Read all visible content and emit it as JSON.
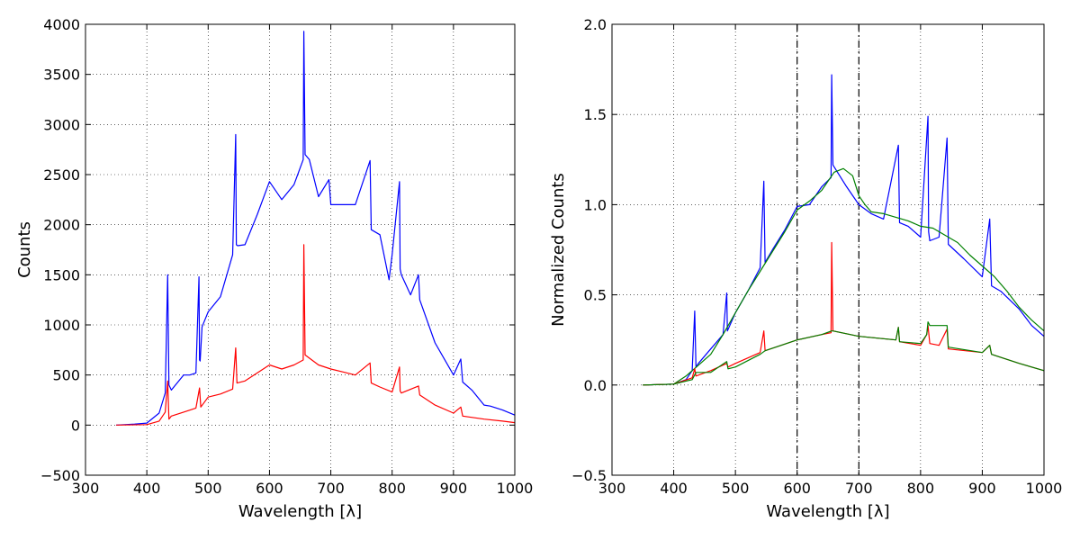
{
  "chart_data": [
    {
      "type": "line",
      "xlabel": "Wavelength [λ]",
      "ylabel": "Counts",
      "xlim": [
        300,
        1000
      ],
      "ylim": [
        -500,
        4000
      ],
      "xticks": [
        300,
        400,
        500,
        600,
        700,
        800,
        900,
        1000
      ],
      "yticks": [
        -500,
        0,
        500,
        1000,
        1500,
        2000,
        2500,
        3000,
        3500,
        4000
      ],
      "xtick_labels": [
        "300",
        "400",
        "500",
        "600",
        "700",
        "800",
        "900",
        "1000"
      ],
      "ytick_labels": [
        "−500",
        "0",
        "500",
        "1000",
        "1500",
        "2000",
        "2500",
        "3000",
        "3500",
        "4000"
      ],
      "grid": true,
      "series": [
        {
          "color": "#0000ff",
          "x": [
            350,
            380,
            400,
            420,
            430,
            434,
            436,
            440,
            460,
            470,
            480,
            485,
            486,
            487,
            490,
            500,
            520,
            540,
            545,
            546,
            548,
            560,
            580,
            600,
            620,
            640,
            655,
            656,
            658,
            665,
            680,
            697,
            700,
            720,
            740,
            764,
            766,
            780,
            795,
            800,
            812,
            813,
            815,
            830,
            843,
            845,
            870,
            900,
            912,
            915,
            930,
            950,
            960,
            980,
            1000
          ],
          "y": [
            0,
            10,
            20,
            120,
            320,
            1500,
            400,
            350,
            500,
            500,
            520,
            1480,
            650,
            640,
            980,
            1130,
            1280,
            1700,
            2900,
            1800,
            1790,
            1800,
            2100,
            2430,
            2250,
            2400,
            2650,
            3930,
            2700,
            2650,
            2280,
            2450,
            2200,
            2200,
            2200,
            2640,
            1950,
            1900,
            1450,
            1700,
            2430,
            1560,
            1500,
            1300,
            1500,
            1250,
            820,
            500,
            660,
            430,
            350,
            200,
            190,
            150,
            100
          ]
        },
        {
          "color": "#ff0000",
          "x": [
            350,
            400,
            420,
            430,
            434,
            436,
            440,
            460,
            480,
            486,
            488,
            500,
            520,
            540,
            545,
            547,
            560,
            580,
            600,
            620,
            640,
            655,
            656,
            658,
            680,
            700,
            720,
            740,
            764,
            766,
            780,
            800,
            812,
            813,
            815,
            843,
            845,
            870,
            900,
            912,
            915,
            950,
            980,
            1000
          ],
          "y": [
            0,
            5,
            40,
            130,
            440,
            60,
            90,
            130,
            170,
            370,
            180,
            280,
            310,
            360,
            770,
            420,
            440,
            520,
            600,
            560,
            600,
            650,
            1800,
            700,
            600,
            560,
            530,
            500,
            620,
            420,
            380,
            330,
            580,
            340,
            320,
            390,
            300,
            200,
            120,
            180,
            90,
            60,
            40,
            25
          ]
        }
      ]
    },
    {
      "type": "line",
      "xlabel": "Wavelength [λ]",
      "ylabel": "Normalized Counts",
      "xlim": [
        300,
        1000
      ],
      "ylim": [
        -0.5,
        2.0
      ],
      "xticks": [
        300,
        400,
        500,
        600,
        700,
        800,
        900,
        1000
      ],
      "yticks": [
        -0.5,
        0.0,
        0.5,
        1.0,
        1.5,
        2.0
      ],
      "xtick_labels": [
        "300",
        "400",
        "500",
        "600",
        "700",
        "800",
        "900",
        "1000"
      ],
      "ytick_labels": [
        "−0.5",
        "0.0",
        "0.5",
        "1.0",
        "1.5",
        "2.0"
      ],
      "grid": true,
      "vlines": [
        600,
        700
      ],
      "series": [
        {
          "color": "#0000ff",
          "x": [
            350,
            400,
            420,
            430,
            434,
            436,
            440,
            460,
            480,
            486,
            487,
            500,
            520,
            540,
            546,
            548,
            560,
            580,
            600,
            620,
            640,
            655,
            656,
            658,
            680,
            700,
            720,
            740,
            764,
            766,
            780,
            800,
            812,
            813,
            815,
            830,
            843,
            845,
            870,
            900,
            912,
            915,
            930,
            960,
            980,
            1000
          ],
          "y": [
            0.0,
            0.005,
            0.03,
            0.08,
            0.41,
            0.1,
            0.12,
            0.2,
            0.28,
            0.51,
            0.3,
            0.4,
            0.52,
            0.65,
            1.13,
            0.68,
            0.75,
            0.86,
            0.99,
            1.0,
            1.1,
            1.15,
            1.72,
            1.22,
            1.1,
            1.0,
            0.95,
            0.92,
            1.33,
            0.9,
            0.88,
            0.82,
            1.49,
            0.85,
            0.8,
            0.82,
            1.37,
            0.78,
            0.7,
            0.6,
            0.92,
            0.55,
            0.52,
            0.42,
            0.33,
            0.27
          ]
        },
        {
          "color": "#008000",
          "x": [
            350,
            400,
            420,
            440,
            460,
            480,
            500,
            520,
            540,
            560,
            580,
            600,
            620,
            640,
            660,
            675,
            690,
            700,
            710,
            720,
            740,
            760,
            780,
            800,
            820,
            840,
            860,
            880,
            900,
            920,
            940,
            960,
            980,
            1000
          ],
          "y": [
            0.0,
            0.005,
            0.05,
            0.11,
            0.17,
            0.28,
            0.4,
            0.52,
            0.63,
            0.74,
            0.85,
            0.97,
            1.02,
            1.08,
            1.18,
            1.2,
            1.16,
            1.05,
            1.0,
            0.96,
            0.95,
            0.93,
            0.91,
            0.88,
            0.87,
            0.83,
            0.79,
            0.72,
            0.66,
            0.6,
            0.52,
            0.43,
            0.36,
            0.3
          ]
        },
        {
          "color": "#ff0000",
          "x": [
            350,
            400,
            430,
            434,
            436,
            460,
            486,
            488,
            500,
            540,
            546,
            548,
            600,
            640,
            655,
            656,
            658,
            700,
            760,
            764,
            766,
            800,
            810,
            812,
            815,
            830,
            843,
            845,
            900,
            912,
            915,
            960,
            1000
          ],
          "y": [
            0.0,
            0.005,
            0.04,
            0.09,
            0.05,
            0.08,
            0.12,
            0.1,
            0.12,
            0.18,
            0.3,
            0.19,
            0.25,
            0.28,
            0.29,
            0.79,
            0.3,
            0.27,
            0.25,
            0.32,
            0.24,
            0.22,
            0.28,
            0.33,
            0.23,
            0.22,
            0.31,
            0.2,
            0.18,
            0.22,
            0.17,
            0.12,
            0.08
          ]
        },
        {
          "color": "#008000",
          "x": [
            350,
            400,
            430,
            436,
            440,
            450,
            460,
            486,
            488,
            500,
            540,
            548,
            600,
            640,
            656,
            658,
            700,
            760,
            764,
            766,
            800,
            810,
            812,
            815,
            840,
            843,
            845,
            900,
            912,
            915,
            960,
            1000
          ],
          "y": [
            0.0,
            0.005,
            0.03,
            0.07,
            0.07,
            0.07,
            0.07,
            0.13,
            0.09,
            0.1,
            0.17,
            0.19,
            0.25,
            0.28,
            0.3,
            0.3,
            0.27,
            0.25,
            0.32,
            0.24,
            0.23,
            0.28,
            0.35,
            0.33,
            0.33,
            0.33,
            0.21,
            0.18,
            0.22,
            0.17,
            0.12,
            0.08
          ]
        }
      ]
    }
  ]
}
